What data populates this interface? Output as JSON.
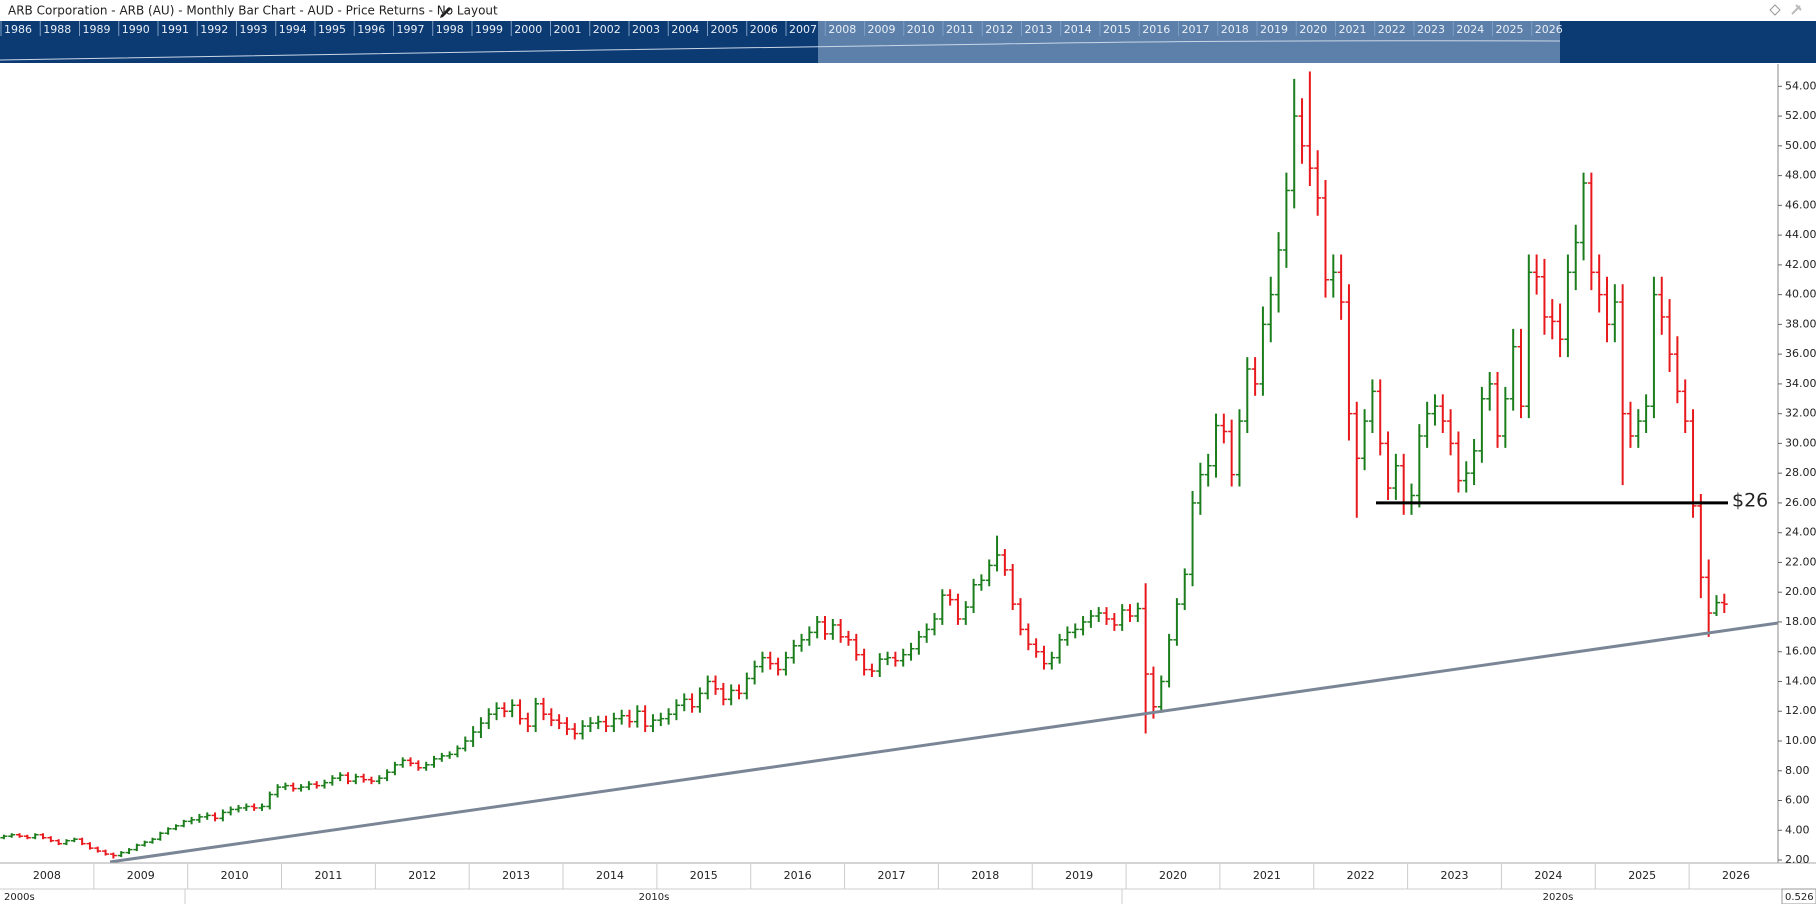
{
  "header": {
    "title": "ARB Corporation - ARB (AU) - Monthly Bar Chart - AUD - Price Returns - No Layout"
  },
  "navigator": {
    "years": [
      "1986",
      "1988",
      "1989",
      "1990",
      "1991",
      "1992",
      "1993",
      "1994",
      "1995",
      "1996",
      "1997",
      "1998",
      "1999",
      "2000",
      "2001",
      "2002",
      "2003",
      "2004",
      "2005",
      "2006",
      "2007",
      "2008",
      "2009",
      "2010",
      "2011",
      "2012",
      "2013",
      "2014",
      "2015",
      "2016",
      "2017",
      "2018",
      "2019",
      "2020",
      "2021",
      "2022",
      "2023",
      "2024",
      "2025",
      "2026"
    ]
  },
  "chart_data": {
    "type": "ohlc",
    "categories": [
      "2008",
      null,
      null,
      null,
      null,
      null,
      null,
      null,
      null,
      null,
      null,
      null,
      "2009",
      null,
      null,
      null,
      null,
      null,
      null,
      null,
      null,
      null,
      null,
      null,
      "2010",
      null,
      null,
      null,
      null,
      null,
      null,
      null,
      null,
      null,
      null,
      null,
      "2011",
      null,
      null,
      null,
      null,
      null,
      null,
      null,
      null,
      null,
      null,
      null,
      "2012",
      null,
      null,
      null,
      null,
      null,
      null,
      null,
      null,
      null,
      null,
      null,
      "2013",
      null,
      null,
      null,
      null,
      null,
      null,
      null,
      null,
      null,
      null,
      null,
      "2014",
      null,
      null,
      null,
      null,
      null,
      null,
      null,
      null,
      null,
      null,
      null,
      "2015",
      null,
      null,
      null,
      null,
      null,
      null,
      null,
      null,
      null,
      null,
      null,
      "2016",
      null,
      null,
      null,
      null,
      null,
      null,
      null,
      null,
      null,
      null,
      null,
      "2017",
      null,
      null,
      null,
      null,
      null,
      null,
      null,
      null,
      null,
      null,
      null,
      "2018",
      null,
      null,
      null,
      null,
      null,
      null,
      null,
      null,
      null,
      null,
      null,
      "2019",
      null,
      null,
      null,
      null,
      null,
      null,
      null,
      null,
      null,
      null,
      null,
      "2020",
      null,
      null,
      null,
      null,
      null,
      null,
      null,
      null,
      null,
      null,
      null,
      "2021",
      null,
      null,
      null,
      null,
      null,
      null,
      null,
      null,
      null,
      null,
      null,
      "2022",
      null,
      null,
      null,
      null,
      null,
      null,
      null,
      null,
      null,
      null,
      null,
      "2023",
      null,
      null,
      null,
      null,
      null,
      null,
      null,
      null,
      null,
      null,
      null,
      "2024",
      null,
      null,
      null,
      null,
      null,
      null,
      null,
      null,
      null,
      null,
      null,
      "2025",
      null,
      null,
      null,
      null,
      null,
      null,
      null,
      null,
      null,
      null,
      null,
      "2026",
      null,
      null,
      null,
      null
    ],
    "open": [
      3.5,
      3.6,
      3.7,
      3.6,
      3.5,
      3.7,
      3.5,
      3.3,
      3.1,
      3.3,
      3.4,
      3.1,
      2.8,
      2.6,
      2.4,
      2.3,
      2.5,
      2.7,
      3.0,
      3.2,
      3.4,
      3.8,
      4.1,
      4.3,
      4.6,
      4.7,
      4.9,
      5.0,
      4.8,
      5.2,
      5.4,
      5.5,
      5.6,
      5.5,
      5.6,
      6.4,
      6.9,
      7.0,
      6.8,
      6.9,
      7.1,
      7.0,
      7.2,
      7.5,
      7.7,
      7.3,
      7.6,
      7.4,
      7.3,
      7.5,
      7.9,
      8.4,
      8.7,
      8.5,
      8.2,
      8.4,
      8.8,
      9.0,
      9.1,
      9.5,
      10.0,
      10.6,
      11.2,
      11.8,
      12.2,
      12.0,
      12.4,
      11.5,
      11.0,
      12.5,
      11.8,
      11.4,
      11.2,
      10.8,
      10.5,
      11.0,
      11.2,
      11.3,
      11.0,
      11.5,
      11.7,
      11.3,
      12.0,
      11.0,
      11.4,
      11.5,
      11.8,
      12.4,
      12.8,
      12.3,
      13.2,
      14.0,
      13.5,
      12.8,
      13.4,
      13.2,
      14.2,
      15.0,
      15.6,
      15.2,
      14.8,
      15.6,
      16.4,
      16.8,
      17.3,
      18.0,
      17.2,
      17.8,
      17.0,
      16.8,
      15.8,
      14.8,
      14.7,
      15.5,
      15.6,
      15.4,
      15.8,
      16.2,
      17.0,
      17.5,
      18.2,
      19.8,
      19.5,
      18.2,
      19.0,
      20.5,
      20.8,
      21.8,
      22.5,
      21.5,
      19.2,
      17.5,
      16.5,
      16.0,
      15.2,
      15.6,
      16.8,
      17.3,
      17.5,
      18.0,
      18.4,
      18.6,
      18.2,
      17.8,
      18.8,
      18.4,
      18.9,
      14.5,
      12.3,
      14.0,
      16.8,
      19.2,
      21.2,
      26.0,
      27.9,
      28.5,
      31.2,
      30.8,
      27.9,
      31.5,
      35.0,
      34.0,
      38.0,
      40.0,
      43.0,
      47.0,
      52.0,
      50.0,
      48.5,
      46.5,
      41.0,
      41.5,
      39.5,
      32.0,
      29.0,
      31.5,
      33.5,
      30.0,
      27.0,
      28.5,
      26.0,
      26.5,
      30.5,
      32.0,
      32.5,
      31.5,
      30.0,
      27.5,
      28.0,
      29.5,
      33.0,
      34.0,
      30.5,
      33.0,
      36.5,
      32.5,
      41.5,
      41.2,
      38.5,
      38.2,
      37.0,
      41.5,
      43.5,
      47.5,
      41.5,
      40.0,
      38.0,
      39.5,
      32.0,
      30.5,
      31.5,
      32.5,
      40.0,
      38.5,
      36.0,
      33.5,
      31.5,
      25.8,
      21.0,
      18.6,
      19.3
    ],
    "high": [
      3.7,
      3.8,
      3.8,
      3.7,
      3.8,
      3.8,
      3.6,
      3.4,
      3.4,
      3.5,
      3.5,
      3.2,
      2.9,
      2.7,
      2.5,
      2.6,
      2.8,
      3.1,
      3.3,
      3.5,
      3.9,
      4.2,
      4.4,
      4.7,
      4.9,
      5.1,
      5.2,
      5.2,
      5.4,
      5.6,
      5.7,
      5.8,
      5.8,
      5.8,
      6.6,
      7.1,
      7.2,
      7.2,
      7.1,
      7.3,
      7.3,
      7.4,
      7.7,
      7.9,
      7.9,
      7.8,
      7.8,
      7.6,
      7.7,
      8.1,
      8.6,
      8.9,
      8.9,
      8.7,
      8.6,
      9.0,
      9.2,
      9.3,
      9.7,
      10.3,
      11.0,
      11.6,
      12.2,
      12.6,
      12.6,
      12.8,
      12.8,
      11.9,
      12.9,
      12.9,
      12.2,
      11.8,
      11.6,
      11.2,
      11.4,
      11.6,
      11.7,
      11.7,
      11.9,
      12.1,
      12.1,
      12.4,
      12.4,
      11.8,
      11.9,
      12.2,
      12.8,
      13.2,
      13.2,
      13.6,
      14.4,
      14.4,
      13.9,
      13.8,
      13.8,
      14.6,
      15.4,
      16.0,
      16.0,
      15.6,
      16.0,
      16.8,
      17.2,
      17.7,
      18.4,
      18.4,
      18.2,
      18.2,
      17.4,
      17.2,
      16.2,
      15.2,
      15.9,
      16.0,
      16.0,
      16.2,
      16.6,
      17.4,
      17.9,
      18.6,
      20.2,
      20.2,
      19.9,
      19.4,
      20.9,
      21.2,
      22.2,
      23.8,
      22.9,
      21.9,
      19.6,
      17.9,
      16.9,
      16.4,
      16.0,
      17.2,
      17.7,
      17.9,
      18.4,
      18.8,
      19.0,
      19.0,
      18.6,
      19.2,
      19.2,
      19.3,
      20.6,
      15.0,
      14.4,
      17.2,
      19.6,
      21.6,
      26.8,
      28.7,
      29.3,
      32.0,
      32.0,
      31.6,
      32.3,
      35.8,
      35.8,
      39.2,
      41.2,
      44.2,
      48.2,
      54.5,
      53.2,
      55.0,
      49.7,
      47.7,
      42.7,
      42.7,
      40.7,
      32.8,
      32.3,
      34.3,
      34.3,
      30.8,
      29.3,
      29.3,
      27.3,
      31.3,
      32.8,
      33.3,
      33.3,
      32.3,
      30.8,
      28.8,
      30.3,
      33.8,
      34.8,
      34.8,
      33.8,
      37.7,
      37.7,
      42.7,
      42.7,
      42.4,
      39.7,
      39.4,
      42.7,
      44.7,
      48.2,
      48.2,
      42.7,
      41.2,
      40.7,
      40.7,
      32.8,
      32.3,
      33.3,
      41.2,
      41.2,
      39.7,
      37.2,
      34.3,
      32.3,
      26.6,
      22.2,
      19.8,
      19.9
    ],
    "low": [
      3.4,
      3.5,
      3.5,
      3.4,
      3.4,
      3.4,
      3.2,
      3.0,
      3.0,
      3.2,
      3.0,
      2.7,
      2.5,
      2.3,
      2.1,
      2.2,
      2.4,
      2.6,
      2.9,
      3.1,
      3.3,
      3.7,
      4.0,
      4.2,
      4.4,
      4.5,
      4.7,
      4.6,
      4.6,
      5.0,
      5.2,
      5.3,
      5.3,
      5.3,
      5.4,
      6.2,
      6.7,
      6.6,
      6.6,
      6.7,
      6.8,
      6.8,
      7.0,
      7.3,
      7.1,
      7.1,
      7.2,
      7.1,
      7.1,
      7.3,
      7.7,
      8.2,
      8.3,
      8.0,
      8.0,
      8.2,
      8.6,
      8.8,
      8.9,
      9.3,
      9.6,
      10.2,
      10.8,
      11.4,
      11.6,
      11.6,
      11.1,
      10.6,
      10.6,
      11.4,
      11.0,
      10.8,
      10.4,
      10.1,
      10.1,
      10.6,
      10.8,
      10.6,
      10.6,
      11.1,
      10.9,
      10.9,
      10.6,
      10.6,
      11.0,
      11.1,
      11.4,
      12.0,
      11.9,
      11.9,
      12.8,
      13.1,
      12.4,
      12.4,
      12.8,
      12.8,
      13.8,
      14.6,
      14.8,
      14.4,
      14.4,
      15.2,
      16.0,
      16.4,
      16.9,
      16.8,
      16.8,
      16.6,
      16.4,
      15.4,
      14.4,
      14.3,
      14.3,
      15.1,
      15.0,
      15.0,
      15.4,
      15.8,
      16.6,
      17.1,
      17.8,
      19.1,
      17.8,
      17.8,
      18.6,
      20.1,
      20.4,
      21.4,
      21.1,
      18.8,
      17.1,
      16.1,
      15.6,
      14.8,
      14.8,
      15.2,
      16.4,
      16.9,
      17.1,
      17.6,
      18.0,
      17.8,
      17.4,
      17.4,
      18.0,
      18.0,
      10.5,
      11.5,
      11.9,
      13.6,
      16.4,
      18.8,
      20.4,
      25.2,
      27.1,
      27.7,
      30.0,
      27.1,
      27.1,
      30.7,
      33.2,
      33.2,
      36.8,
      38.8,
      41.8,
      45.8,
      48.8,
      47.3,
      45.3,
      39.8,
      39.8,
      38.3,
      30.2,
      25.0,
      28.2,
      30.7,
      29.2,
      26.2,
      26.2,
      25.2,
      25.2,
      25.7,
      29.7,
      31.2,
      30.7,
      29.2,
      26.7,
      26.7,
      27.2,
      28.7,
      32.2,
      29.7,
      29.7,
      32.2,
      31.7,
      31.7,
      40.0,
      37.3,
      37.0,
      35.8,
      35.8,
      40.3,
      42.3,
      40.3,
      38.8,
      36.8,
      36.8,
      27.2,
      29.7,
      29.7,
      30.7,
      31.7,
      37.3,
      34.8,
      32.7,
      30.7,
      25.0,
      19.6,
      17.0,
      18.4,
      18.6
    ],
    "close": [
      3.6,
      3.7,
      3.6,
      3.5,
      3.7,
      3.5,
      3.3,
      3.1,
      3.3,
      3.4,
      3.1,
      2.8,
      2.6,
      2.4,
      2.3,
      2.5,
      2.7,
      3.0,
      3.2,
      3.4,
      3.8,
      4.1,
      4.3,
      4.6,
      4.7,
      4.9,
      5.0,
      4.8,
      5.2,
      5.4,
      5.5,
      5.6,
      5.5,
      5.6,
      6.4,
      6.9,
      7.0,
      6.8,
      6.9,
      7.1,
      7.0,
      7.2,
      7.5,
      7.7,
      7.3,
      7.6,
      7.4,
      7.3,
      7.5,
      7.9,
      8.4,
      8.7,
      8.5,
      8.2,
      8.4,
      8.8,
      9.0,
      9.1,
      9.5,
      10.0,
      10.6,
      11.2,
      11.8,
      12.2,
      12.0,
      12.4,
      11.5,
      11.0,
      12.5,
      11.8,
      11.4,
      11.2,
      10.8,
      10.5,
      11.0,
      11.2,
      11.3,
      11.0,
      11.5,
      11.7,
      11.3,
      12.0,
      11.0,
      11.4,
      11.5,
      11.8,
      12.4,
      12.8,
      12.3,
      13.2,
      14.0,
      13.5,
      12.8,
      13.4,
      13.2,
      14.2,
      15.0,
      15.6,
      15.2,
      14.8,
      15.6,
      16.4,
      16.8,
      17.3,
      18.0,
      17.2,
      17.8,
      17.0,
      16.8,
      15.8,
      14.8,
      14.7,
      15.5,
      15.6,
      15.4,
      15.8,
      16.2,
      17.0,
      17.5,
      18.2,
      19.8,
      19.5,
      18.2,
      19.0,
      20.5,
      20.8,
      21.8,
      22.5,
      21.5,
      19.2,
      17.5,
      16.5,
      16.0,
      15.2,
      15.6,
      16.8,
      17.3,
      17.5,
      18.0,
      18.4,
      18.6,
      18.2,
      17.8,
      18.8,
      18.4,
      18.9,
      14.5,
      12.3,
      14.0,
      16.8,
      19.2,
      21.2,
      26.0,
      27.9,
      28.5,
      31.2,
      30.8,
      27.9,
      31.5,
      35.0,
      34.0,
      38.0,
      40.0,
      43.0,
      47.0,
      52.0,
      50.0,
      48.5,
      46.5,
      41.0,
      41.5,
      39.5,
      32.0,
      29.0,
      31.5,
      33.5,
      30.0,
      27.0,
      28.5,
      26.0,
      26.5,
      30.5,
      32.0,
      32.5,
      31.5,
      30.0,
      27.5,
      28.0,
      29.5,
      33.0,
      34.0,
      30.5,
      33.0,
      36.5,
      32.5,
      41.5,
      41.2,
      38.5,
      38.2,
      37.0,
      41.5,
      43.5,
      47.5,
      41.5,
      40.0,
      38.0,
      39.5,
      32.0,
      30.5,
      31.5,
      32.5,
      40.0,
      38.5,
      36.0,
      33.5,
      31.5,
      25.8,
      21.0,
      18.6,
      19.3,
      19.2
    ],
    "up_color": "#1b7d1b",
    "down_color": "#e8191c",
    "ylim": [
      1.8,
      55.5
    ],
    "yticks": [
      {
        "value": 2,
        "label": "2.00"
      },
      {
        "value": 4,
        "label": "4.00"
      },
      {
        "value": 6,
        "label": "6.00"
      },
      {
        "value": 8,
        "label": "8.00"
      },
      {
        "value": 10,
        "label": "10.00"
      },
      {
        "value": 12,
        "label": "12.00"
      },
      {
        "value": 14,
        "label": "14.00"
      },
      {
        "value": 16,
        "label": "16.00"
      },
      {
        "value": 18,
        "label": "18.00"
      },
      {
        "value": 20,
        "label": "20.00"
      },
      {
        "value": 22,
        "label": "22.00"
      },
      {
        "value": 24,
        "label": "24.00"
      },
      {
        "value": 26,
        "label": "26.00"
      },
      {
        "value": 28,
        "label": "28.00"
      },
      {
        "value": 30,
        "label": "30.00"
      },
      {
        "value": 32,
        "label": "32.00"
      },
      {
        "value": 34,
        "label": "34.00"
      },
      {
        "value": 36,
        "label": "36.00"
      },
      {
        "value": 38,
        "label": "38.00"
      },
      {
        "value": 40,
        "label": "40.00"
      },
      {
        "value": 42,
        "label": "42.00"
      },
      {
        "value": 44,
        "label": "44.00"
      },
      {
        "value": 46,
        "label": "46.00"
      },
      {
        "value": 48,
        "label": "48.00"
      },
      {
        "value": 50,
        "label": "50.00"
      },
      {
        "value": 52,
        "label": "52.00"
      },
      {
        "value": 54,
        "label": "54.00"
      }
    ],
    "level": {
      "value": 26,
      "label": "$26",
      "color": "#000000"
    },
    "decades": [
      "2000s",
      "2010s",
      "2020s"
    ]
  },
  "scale_label": "0.526"
}
